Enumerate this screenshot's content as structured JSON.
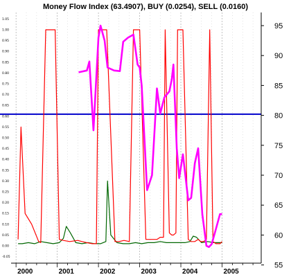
{
  "chart_data": {
    "type": "line",
    "title": "Money Flow Index (63.4907), BUY (0.0254), SELL (0.0160)",
    "x_ticks": [
      "2000",
      "2001",
      "2002",
      "2003",
      "2004",
      "2005"
    ],
    "xlim": [
      1999.88,
      2005.95
    ],
    "left_axis": {
      "ylim": [
        -0.08,
        1.08
      ],
      "ticks": [
        "-0.05",
        "0.00",
        "0.05",
        "0.10",
        "0.15",
        "0.20",
        "0.25",
        "0.30",
        "0.35",
        "0.40",
        "0.45",
        "0.50",
        "0.55",
        "0.60",
        "0.65",
        "0.70",
        "0.75",
        "0.80",
        "0.85",
        "0.90",
        "0.95",
        "1.00",
        "1.05"
      ]
    },
    "right_axis": {
      "ylim": [
        55.3,
        97.2
      ],
      "ticks": [
        "55",
        "60",
        "65",
        "70",
        "75",
        "80",
        "85",
        "90",
        "95"
      ]
    },
    "reference_line": {
      "axis": "right",
      "value": 80.2,
      "color": "#0000cc"
    },
    "series": [
      {
        "color": "#ff00ff",
        "axis": "right",
        "x": [
          2001.52,
          2001.72,
          2001.78,
          2001.88,
          2002.0,
          2002.05,
          2002.15,
          2002.22,
          2002.38,
          2002.52,
          2002.6,
          2002.72,
          2002.85,
          2002.95,
          2003.0,
          2003.05,
          2003.18,
          2003.3,
          2003.42,
          2003.5,
          2003.6,
          2003.72,
          2003.78,
          2003.82,
          2003.9,
          2003.96,
          2004.05,
          2004.18,
          2004.25,
          2004.34,
          2004.42,
          2004.52,
          2004.62,
          2004.68,
          2004.75,
          2004.85,
          2004.95,
          2005.0
        ],
        "y": [
          87.2,
          87.5,
          89,
          77.5,
          93,
          95,
          92.5,
          88,
          87.5,
          87.4,
          92.3,
          93,
          93.5,
          88.5,
          88,
          85,
          67.5,
          70,
          84.5,
          80.3,
          83,
          84,
          86,
          88.5,
          74.5,
          69.5,
          73.5,
          65.8,
          66.2,
          72,
          74.5,
          63.5,
          58.2,
          58,
          58.5,
          61,
          63.5,
          63.5
        ]
      },
      {
        "color": "#ff0000",
        "axis": "left",
        "x": [
          2000.05,
          2000.12,
          2000.22,
          2000.38,
          2000.55,
          2000.6,
          2000.72,
          2000.85,
          2000.95,
          2001.05,
          2001.15,
          2001.3,
          2001.5,
          2001.6,
          2001.72,
          2001.85,
          2001.95,
          2002.0,
          2002.08,
          2002.2,
          2002.4,
          2002.5,
          2002.62,
          2002.75,
          2002.85,
          2002.92,
          2003.0,
          2003.15,
          2003.28,
          2003.42,
          2003.5,
          2003.58,
          2003.62,
          2003.72,
          2003.78,
          2003.82,
          2003.88,
          2003.92,
          2004.05,
          2004.18,
          2004.25,
          2004.34,
          2004.42,
          2004.48,
          2004.55,
          2004.62,
          2004.7,
          2004.78,
          2004.85,
          2004.95,
          2005.0
        ],
        "y": [
          0.03,
          0.55,
          0.15,
          0.1,
          0.02,
          0.015,
          1.0,
          1.0,
          1.0,
          0.03,
          0.025,
          0.02,
          0.025,
          0.02,
          0.015,
          0.01,
          0.01,
          1.0,
          1.0,
          1.0,
          0.02,
          0.02,
          0.025,
          0.02,
          1.0,
          1.0,
          1.0,
          0.03,
          0.03,
          0.03,
          0.04,
          0.04,
          1.0,
          0.06,
          0.05,
          0.05,
          0.06,
          1.0,
          1.0,
          0.03,
          0.02,
          0.02,
          0.03,
          0.02,
          0.02,
          0.03,
          1.0,
          0.02,
          0.01,
          0.01,
          0.02
        ]
      },
      {
        "color": "#006600",
        "axis": "left",
        "x": [
          2000.05,
          2000.15,
          2000.3,
          2000.45,
          2000.6,
          2000.75,
          2000.9,
          2001.05,
          2001.15,
          2001.22,
          2001.32,
          2001.45,
          2001.6,
          2001.75,
          2001.9,
          2002.05,
          2002.18,
          2002.22,
          2002.3,
          2002.45,
          2002.6,
          2002.75,
          2002.9,
          2003.05,
          2003.2,
          2003.35,
          2003.5,
          2003.65,
          2003.8,
          2003.95,
          2004.1,
          2004.22,
          2004.3,
          2004.38,
          2004.5,
          2004.65,
          2004.8,
          2004.95,
          2005.0
        ],
        "y": [
          0.01,
          0.01,
          0.015,
          0.01,
          0.02,
          0.015,
          0.01,
          0.015,
          0.035,
          0.09,
          0.06,
          0.015,
          0.01,
          0.015,
          0.01,
          0.01,
          0.02,
          0.3,
          0.05,
          0.015,
          0.01,
          0.01,
          0.015,
          0.01,
          0.015,
          0.015,
          0.02,
          0.015,
          0.015,
          0.015,
          0.015,
          0.02,
          0.045,
          0.04,
          0.015,
          0.02,
          0.015,
          0.015,
          0.015
        ]
      }
    ],
    "grid": "dotted vertical",
    "legend": "none"
  }
}
